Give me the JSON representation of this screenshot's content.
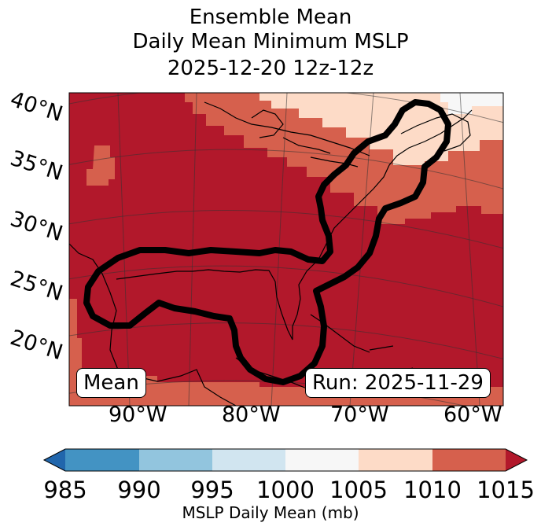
{
  "title": {
    "line1": "Ensemble Mean",
    "line2": "Daily Mean Minimum MSLP",
    "line3": "2025-12-20 12z-12z"
  },
  "map": {
    "lat_labels": [
      "40°N",
      "35°N",
      "30°N",
      "25°N",
      "20°N"
    ],
    "lon_labels": [
      "90°W",
      "80°W",
      "70°W",
      "60°W"
    ],
    "mean_label": "Mean",
    "run_label": "Run: 2025-11-29",
    "contour_color": "#000000"
  },
  "colorbar": {
    "ticks": [
      "985",
      "990",
      "995",
      "1000",
      "1005",
      "1010",
      "1015"
    ],
    "label": "MSLP Daily Mean (mb)",
    "colors": [
      "#2166ac",
      "#4393c3",
      "#92c5de",
      "#d1e5f0",
      "#f7f7f7",
      "#fddbc7",
      "#d6604d",
      "#b2182b"
    ]
  }
}
